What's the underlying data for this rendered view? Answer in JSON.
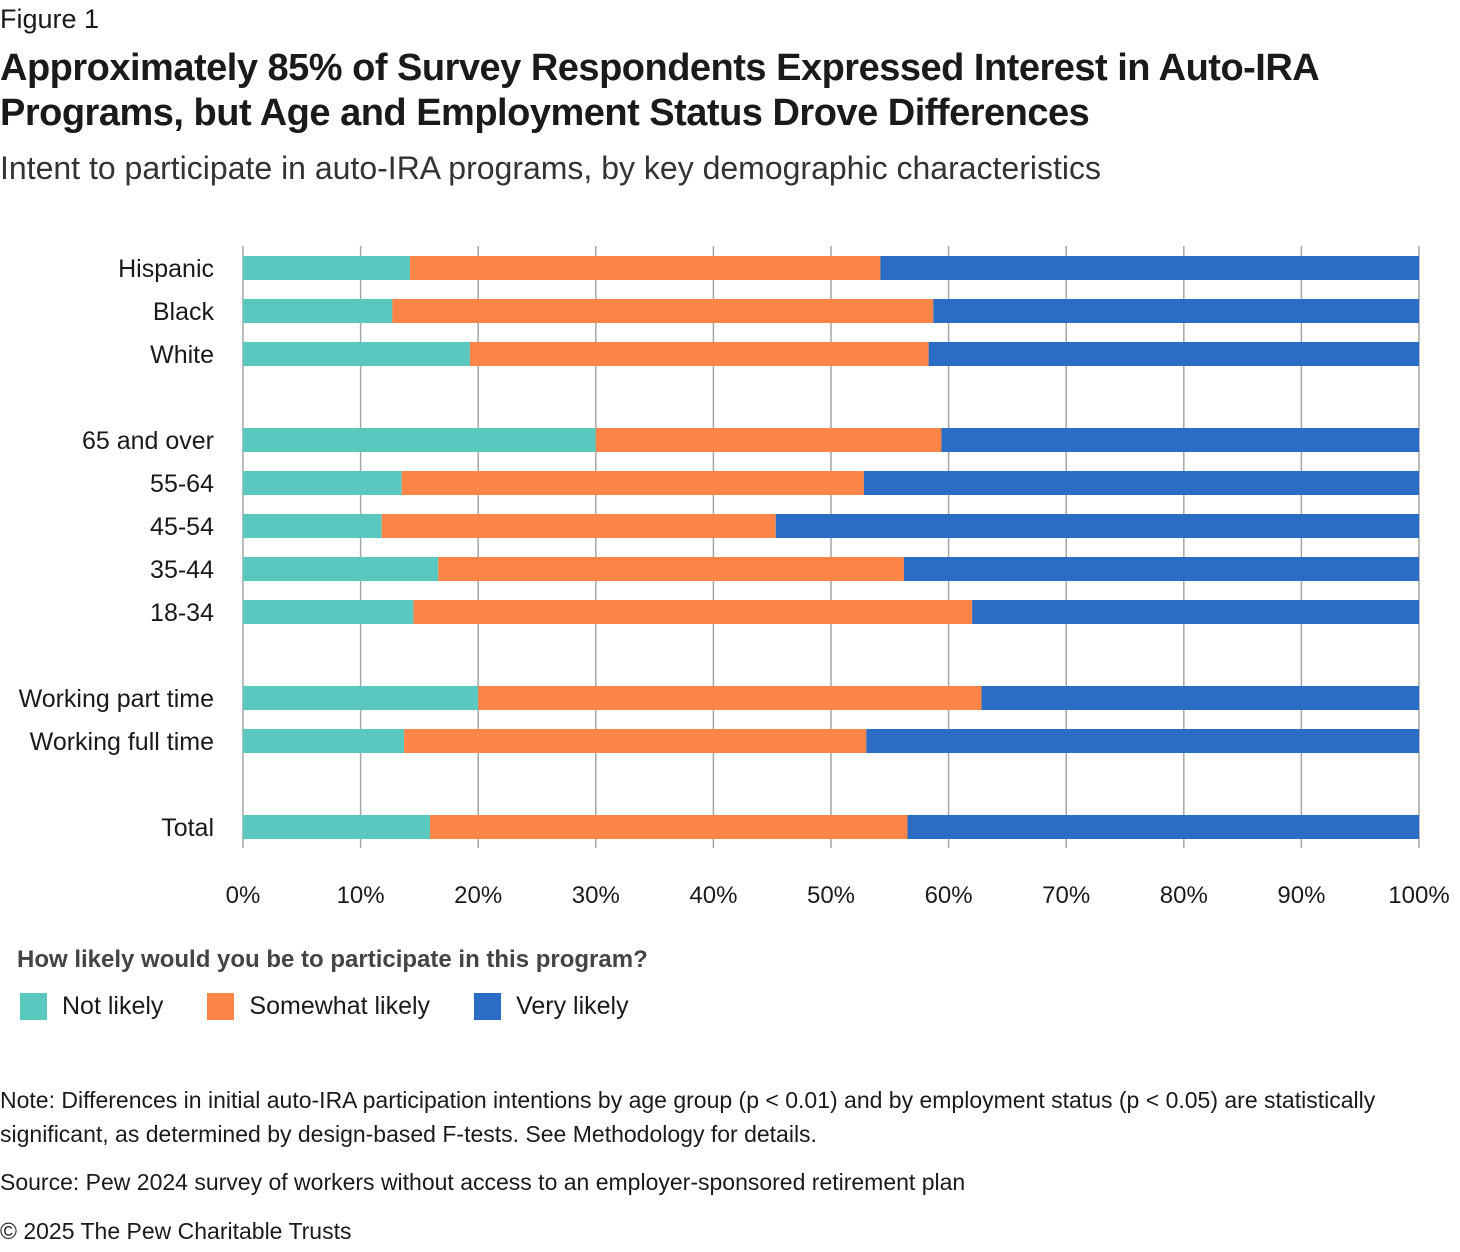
{
  "figure_label": "Figure 1",
  "title": "Approximately 85% of Survey Respondents Expressed Interest in Auto-IRA Programs, but Age and Employment Status Drove Differences",
  "subtitle": "Intent to participate in auto-IRA programs, by key demographic characteristics",
  "legend": {
    "title": "How likely would you be to participate in this program?"
  },
  "note": "Note: Differences in initial auto-IRA participation intentions by age group (p < 0.01) and by employment status (p < 0.05) are statistically significant, as determined by design-based F-tests. See Methodology for details.",
  "source": "Source: Pew 2024 survey of workers without access to an employer-sponsored retirement plan",
  "copyright": "© 2025 The Pew Charitable Trusts",
  "chart_data": {
    "type": "bar",
    "orientation": "horizontal",
    "stacked": true,
    "percent_stacked": true,
    "categories": [
      "Hispanic",
      "Black",
      "White",
      "65 and over",
      "55-64",
      "45-54",
      "35-44",
      "18-34",
      "Working part time",
      "Working full time",
      "Total"
    ],
    "groups": [
      [
        "Hispanic",
        "Black",
        "White"
      ],
      [
        "65 and over",
        "55-64",
        "45-54",
        "35-44",
        "18-34"
      ],
      [
        "Working part time",
        "Working full time"
      ],
      [
        "Total"
      ]
    ],
    "series": [
      {
        "name": "Not likely",
        "color": "#5bc8bf",
        "values": [
          14.2,
          12.7,
          19.3,
          30.0,
          13.5,
          11.8,
          16.6,
          14.5,
          20.0,
          13.7,
          15.9
        ]
      },
      {
        "name": "Somewhat likely",
        "color": "#ff8447",
        "values": [
          40.0,
          46.0,
          39.0,
          29.4,
          39.3,
          33.5,
          39.6,
          47.5,
          42.8,
          39.3,
          40.6
        ]
      },
      {
        "name": "Very likely",
        "color": "#2b6cc4",
        "values": [
          45.8,
          41.3,
          41.7,
          40.6,
          47.2,
          54.7,
          43.8,
          38.0,
          37.2,
          47.0,
          43.5
        ]
      }
    ],
    "x_ticks": [
      "0%",
      "10%",
      "20%",
      "30%",
      "40%",
      "50%",
      "60%",
      "70%",
      "80%",
      "90%",
      "100%"
    ],
    "xlim": [
      0,
      100
    ],
    "grid": true,
    "legend_position": "bottom-left"
  }
}
